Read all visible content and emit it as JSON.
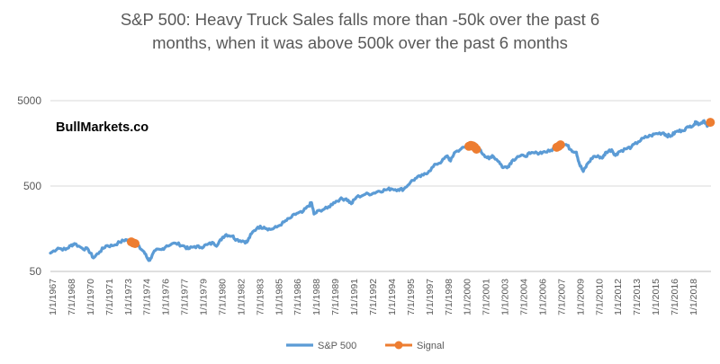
{
  "watermark": "BullMarkets.co",
  "colors": {
    "sp500": "#5B9BD5",
    "signal": "#ED7D31",
    "gridline": "#D9D9D9",
    "axis": "#BFBFBF",
    "text": "#595959",
    "watermark": "#000000"
  },
  "chart_data": {
    "type": "line",
    "title": "S&P 500: Heavy Truck Sales falls more than -50k over the past 6 months, when it was above 500k over the past 6 months",
    "title_lines": [
      "S&P 500: Heavy Truck Sales falls more than -50k over the past 6",
      "months, when it was above 500k over the past 6 months"
    ],
    "y_scale": "log",
    "ylim": [
      50,
      5000
    ],
    "y_ticks": [
      "50",
      "500",
      "5000"
    ],
    "y_tick_values": [
      50,
      500,
      5000
    ],
    "x_range": [
      1967.0,
      2019.25
    ],
    "x_tick_labels": [
      "1/1/1967",
      "7/1/1968",
      "1/1/1970",
      "7/1/1971",
      "1/1/1973",
      "7/1/1974",
      "1/1/1976",
      "7/1/1977",
      "1/1/1979",
      "7/1/1980",
      "1/1/1982",
      "7/1/1983",
      "1/1/1985",
      "7/1/1986",
      "1/1/1988",
      "7/1/1989",
      "1/1/1991",
      "7/1/1992",
      "1/1/1994",
      "7/1/1995",
      "1/1/1997",
      "7/1/1998",
      "1/1/2000",
      "7/1/2001",
      "1/1/2003",
      "7/1/2004",
      "1/1/2006",
      "7/1/2007",
      "1/1/2009",
      "7/1/2010",
      "1/1/2012",
      "7/1/2013",
      "1/1/2015",
      "7/1/2016",
      "1/1/2018"
    ],
    "grid": "horizontal",
    "legend_position": "bottom",
    "series": [
      {
        "name": "S&P 500",
        "style": "line",
        "points": [
          [
            1967.0,
            82
          ],
          [
            1967.6,
            94
          ],
          [
            1968.2,
            90
          ],
          [
            1968.6,
            100
          ],
          [
            1968.9,
            106
          ],
          [
            1969.5,
            94
          ],
          [
            1970.0,
            90
          ],
          [
            1970.4,
            72
          ],
          [
            1970.9,
            85
          ],
          [
            1971.4,
            100
          ],
          [
            1971.9,
            100
          ],
          [
            1972.5,
            110
          ],
          [
            1972.95,
            118
          ],
          [
            1973.3,
            112
          ],
          [
            1973.6,
            105
          ],
          [
            1973.9,
            100
          ],
          [
            1974.4,
            85
          ],
          [
            1974.75,
            68
          ],
          [
            1974.9,
            70
          ],
          [
            1975.3,
            88
          ],
          [
            1975.8,
            90
          ],
          [
            1976.2,
            100
          ],
          [
            1976.9,
            107
          ],
          [
            1977.5,
            100
          ],
          [
            1977.9,
            92
          ],
          [
            1978.4,
            98
          ],
          [
            1978.9,
            96
          ],
          [
            1979.4,
            103
          ],
          [
            1979.9,
            108
          ],
          [
            1980.2,
            101
          ],
          [
            1980.6,
            125
          ],
          [
            1980.9,
            135
          ],
          [
            1981.4,
            130
          ],
          [
            1981.7,
            118
          ],
          [
            1982.2,
            114
          ],
          [
            1982.55,
            110
          ],
          [
            1982.9,
            138
          ],
          [
            1983.4,
            165
          ],
          [
            1983.9,
            165
          ],
          [
            1984.4,
            155
          ],
          [
            1984.9,
            165
          ],
          [
            1985.5,
            190
          ],
          [
            1985.95,
            210
          ],
          [
            1986.5,
            240
          ],
          [
            1986.9,
            245
          ],
          [
            1987.4,
            290
          ],
          [
            1987.65,
            320
          ],
          [
            1987.85,
            235
          ],
          [
            1988.3,
            260
          ],
          [
            1988.9,
            275
          ],
          [
            1989.4,
            320
          ],
          [
            1989.9,
            350
          ],
          [
            1990.4,
            355
          ],
          [
            1990.8,
            310
          ],
          [
            1991.2,
            370
          ],
          [
            1991.9,
            400
          ],
          [
            1992.5,
            410
          ],
          [
            1992.95,
            435
          ],
          [
            1993.5,
            450
          ],
          [
            1993.95,
            465
          ],
          [
            1994.5,
            455
          ],
          [
            1994.95,
            460
          ],
          [
            1995.5,
            560
          ],
          [
            1995.95,
            620
          ],
          [
            1996.5,
            670
          ],
          [
            1996.95,
            750
          ],
          [
            1997.5,
            900
          ],
          [
            1997.95,
            970
          ],
          [
            1998.4,
            1130
          ],
          [
            1998.65,
            980
          ],
          [
            1998.95,
            1230
          ],
          [
            1999.5,
            1370
          ],
          [
            1999.95,
            1450
          ],
          [
            2000.25,
            1500
          ],
          [
            2000.7,
            1450
          ],
          [
            2000.95,
            1320
          ],
          [
            2001.3,
            1160
          ],
          [
            2001.7,
            1040
          ],
          [
            2001.95,
            1140
          ],
          [
            2002.5,
            960
          ],
          [
            2002.8,
            820
          ],
          [
            2003.2,
            850
          ],
          [
            2003.5,
            980
          ],
          [
            2003.95,
            1110
          ],
          [
            2004.5,
            1120
          ],
          [
            2004.95,
            1200
          ],
          [
            2005.5,
            1220
          ],
          [
            2005.95,
            1250
          ],
          [
            2006.5,
            1280
          ],
          [
            2006.95,
            1420
          ],
          [
            2007.4,
            1500
          ],
          [
            2007.8,
            1530
          ],
          [
            2008.2,
            1320
          ],
          [
            2008.6,
            1250
          ],
          [
            2008.85,
            900
          ],
          [
            2009.15,
            740
          ],
          [
            2009.5,
            920
          ],
          [
            2009.95,
            1110
          ],
          [
            2010.4,
            1100
          ],
          [
            2010.7,
            1080
          ],
          [
            2010.95,
            1250
          ],
          [
            2011.4,
            1330
          ],
          [
            2011.7,
            1140
          ],
          [
            2011.95,
            1260
          ],
          [
            2012.5,
            1360
          ],
          [
            2012.95,
            1430
          ],
          [
            2013.5,
            1650
          ],
          [
            2013.95,
            1830
          ],
          [
            2014.5,
            1950
          ],
          [
            2014.95,
            2060
          ],
          [
            2015.5,
            2100
          ],
          [
            2015.75,
            1950
          ],
          [
            2016.1,
            1940
          ],
          [
            2016.5,
            2170
          ],
          [
            2016.95,
            2240
          ],
          [
            2017.5,
            2450
          ],
          [
            2017.95,
            2670
          ],
          [
            2018.1,
            2820
          ],
          [
            2018.3,
            2650
          ],
          [
            2018.7,
            2920
          ],
          [
            2018.95,
            2500
          ],
          [
            2019.25,
            2800
          ]
        ]
      },
      {
        "name": "Signal",
        "style": "markers",
        "points": [
          [
            1973.4,
            111
          ],
          [
            1973.55,
            108
          ],
          [
            1973.7,
            106
          ],
          [
            2000.1,
            1460
          ],
          [
            2000.25,
            1500
          ],
          [
            2000.4,
            1480
          ],
          [
            2000.55,
            1430
          ],
          [
            2000.7,
            1350
          ],
          [
            2007.05,
            1420
          ],
          [
            2007.2,
            1460
          ],
          [
            2007.35,
            1520
          ],
          [
            2019.2,
            2790
          ]
        ]
      }
    ]
  }
}
